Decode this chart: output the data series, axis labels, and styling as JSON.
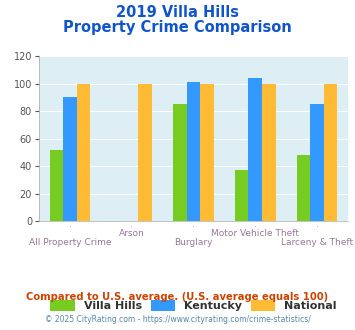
{
  "title_line1": "2019 Villa Hills",
  "title_line2": "Property Crime Comparison",
  "categories": [
    "All Property Crime",
    "Arson",
    "Burglary",
    "Motor Vehicle Theft",
    "Larceny & Theft"
  ],
  "series": {
    "Villa Hills": [
      52,
      null,
      85,
      37,
      48
    ],
    "Kentucky": [
      90,
      null,
      101,
      104,
      85
    ],
    "National": [
      100,
      100,
      100,
      100,
      100
    ]
  },
  "colors": {
    "Villa Hills": "#77cc22",
    "Kentucky": "#3399ff",
    "National": "#ffbb33"
  },
  "ylim": [
    0,
    120
  ],
  "yticks": [
    0,
    20,
    40,
    60,
    80,
    100,
    120
  ],
  "bar_width": 0.22,
  "plot_area_bg": "#ddeef5",
  "title_color": "#1155cc",
  "xlabel_color": "#997799",
  "footnote1": "Compared to U.S. average. (U.S. average equals 100)",
  "footnote2": "© 2025 CityRating.com - https://www.cityrating.com/crime-statistics/",
  "footnote1_color": "#cc4400",
  "footnote2_color": "#5588aa",
  "legend_label_color": "#333333"
}
